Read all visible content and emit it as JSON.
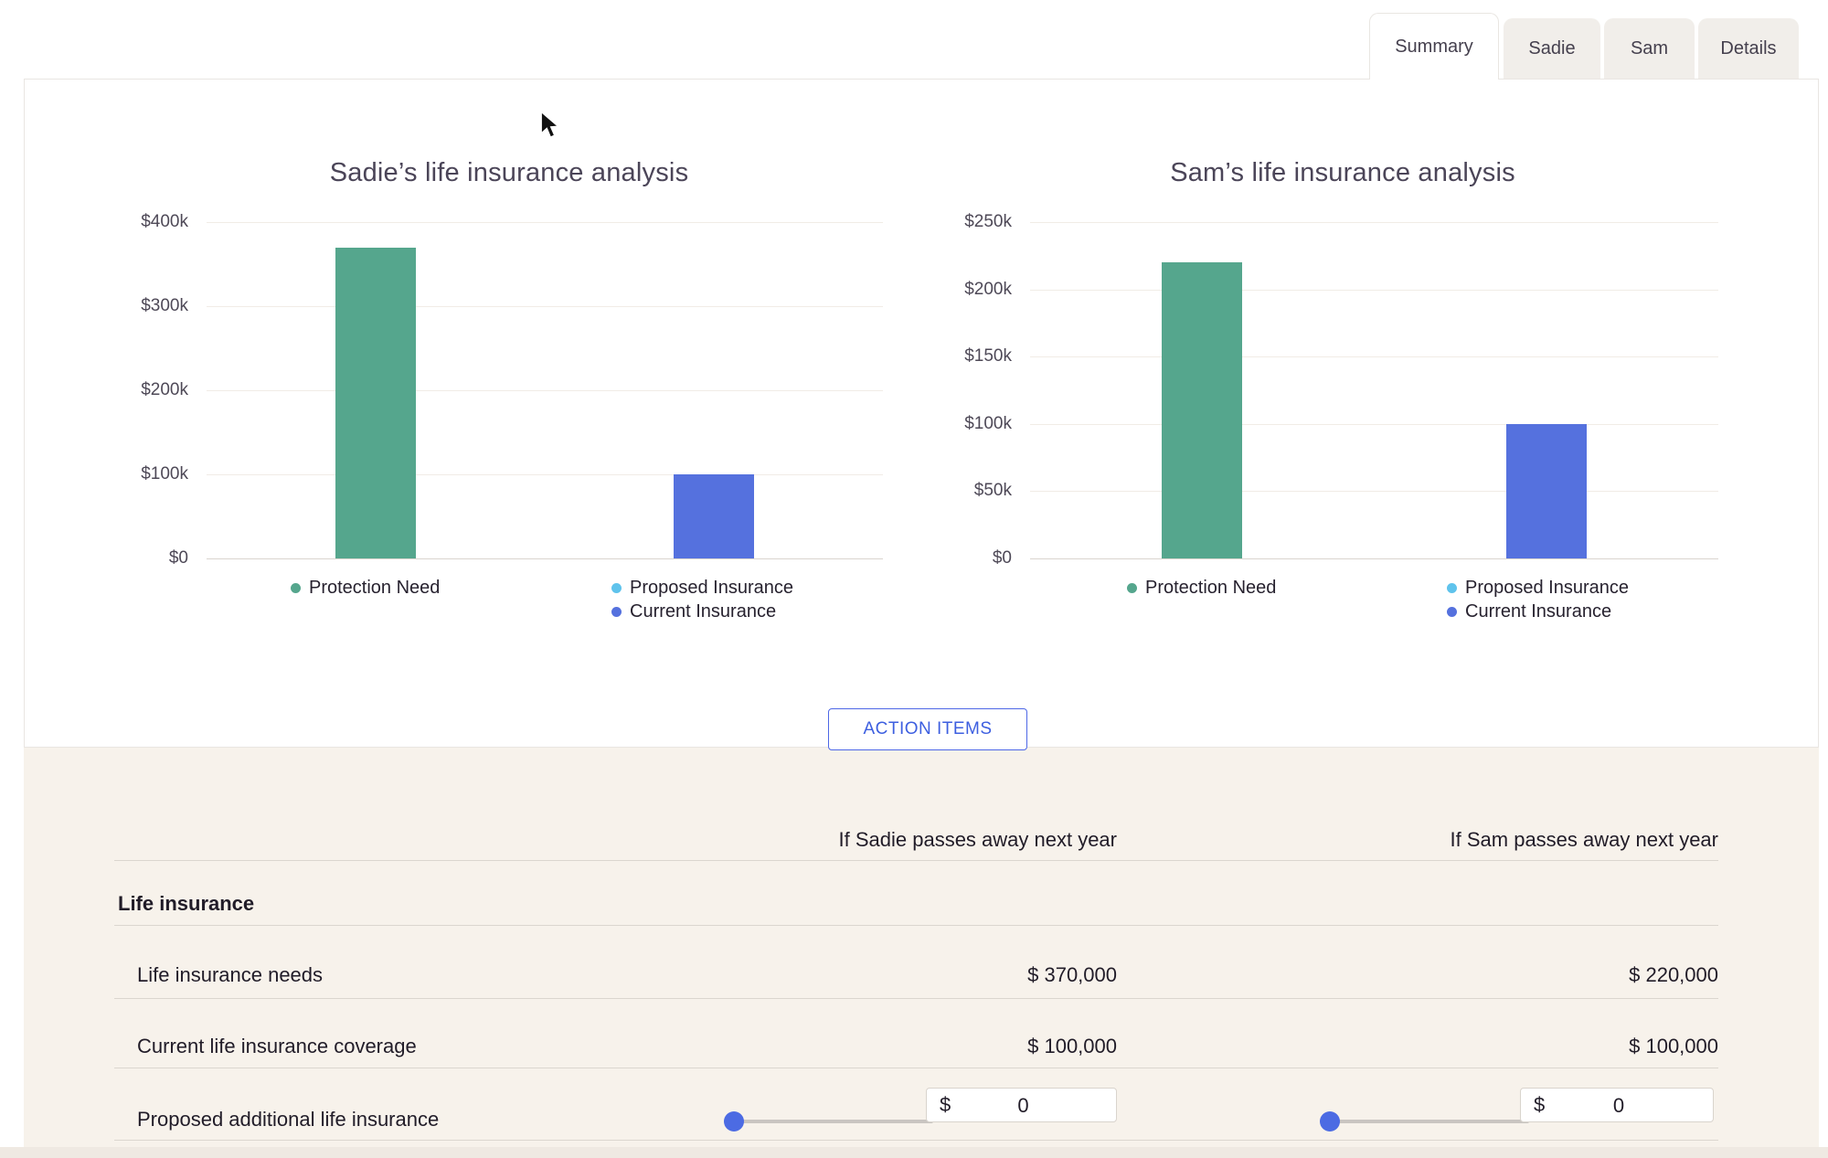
{
  "tabs": [
    {
      "label": "Summary",
      "active": true
    },
    {
      "label": "Sadie",
      "active": false
    },
    {
      "label": "Sam",
      "active": false
    },
    {
      "label": "Details",
      "active": false
    }
  ],
  "action_button": {
    "label": "ACTION ITEMS"
  },
  "chart_data": [
    {
      "type": "bar",
      "title": "Sadie’s life insurance analysis",
      "categories": [
        "Protection Need",
        "Current Insurance"
      ],
      "values": [
        370000,
        100000
      ],
      "bar_colors": [
        "#55A68D",
        "#5571DE"
      ],
      "y_ticks": [
        "$400k",
        "$300k",
        "$200k",
        "$100k",
        "$0"
      ],
      "ylim": [
        0,
        400000
      ],
      "grid": true,
      "legend_position": "bottom",
      "legend": [
        {
          "label": "Protection Need",
          "color": "#55A68D"
        },
        {
          "label": "Proposed Insurance",
          "color": "#5FC3EC"
        },
        {
          "label": "Current Insurance",
          "color": "#5571DE"
        }
      ]
    },
    {
      "type": "bar",
      "title": "Sam’s life insurance analysis",
      "categories": [
        "Protection Need",
        "Current Insurance"
      ],
      "values": [
        220000,
        100000
      ],
      "bar_colors": [
        "#55A68D",
        "#5571DE"
      ],
      "y_ticks": [
        "$250k",
        "$200k",
        "$150k",
        "$100k",
        "$50k",
        "$0"
      ],
      "ylim": [
        0,
        250000
      ],
      "grid": true,
      "legend_position": "bottom",
      "legend": [
        {
          "label": "Protection Need",
          "color": "#55A68D"
        },
        {
          "label": "Proposed Insurance",
          "color": "#5FC3EC"
        },
        {
          "label": "Current Insurance",
          "color": "#5571DE"
        }
      ]
    }
  ],
  "table": {
    "column_headers": [
      "If Sadie passes away next year",
      "If Sam passes away next year"
    ],
    "section_header": "Life insurance",
    "rows": [
      {
        "label": "Life insurance needs",
        "sadie": "$ 370,000",
        "sam": "$ 220,000"
      },
      {
        "label": "Current life insurance coverage",
        "sadie": "$ 100,000",
        "sam": "$ 100,000"
      },
      {
        "label": "Proposed additional life insurance",
        "sadie_slider_value": 0,
        "sadie_input": {
          "prefix": "$",
          "value": "0"
        },
        "sam_slider_value": 0,
        "sam_input": {
          "prefix": "$",
          "value": "0"
        }
      }
    ]
  },
  "colors": {
    "protection_need": "#55A68D",
    "proposed_insurance": "#5FC3EC",
    "current_insurance": "#5571DE",
    "accent_blue": "#4C6BE3",
    "panel_beige": "#F7F2EB"
  }
}
